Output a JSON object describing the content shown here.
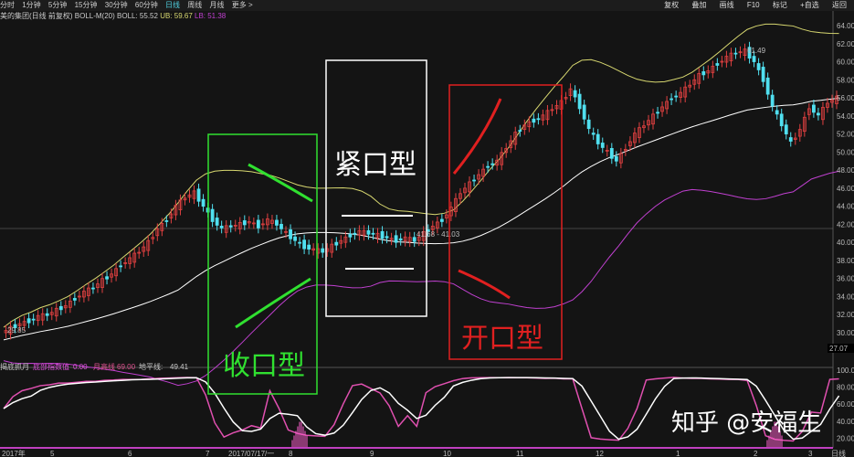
{
  "toolbar": {
    "periods": [
      "分时",
      "1分钟",
      "5分钟",
      "15分钟",
      "30分钟",
      "60分钟",
      "日线",
      "周线",
      "月线",
      "更多 >"
    ],
    "active": "日线",
    "right": [
      "复权",
      "叠加",
      "画线",
      "F10",
      "标记",
      "+自选",
      "返回"
    ]
  },
  "info": {
    "title": "美的集团(日线 前复权) BOLL-M(20)",
    "boll": "BOLL: 55.52",
    "ub": "UB: 59.67",
    "lb": "LB: 51.38"
  },
  "indicator": {
    "name": "揭底抓月",
    "a_label": "底部指数值",
    "a_value": "0.00",
    "b_label": "月高线",
    "b_value": "69.00",
    "c_label": "地平线:",
    "c_value": "49.41"
  },
  "colors": {
    "up": "#e04040",
    "down": "#50e0f0",
    "ub": "#d8d870",
    "mid": "#ffffff",
    "lb": "#c040d0",
    "osc": "#e050b0",
    "bg": "#141414"
  },
  "price_labels": {
    "high": "61.49",
    "mid": "41.68 - 41.03",
    "low": "29.85",
    "last": "27.07"
  },
  "annotations": {
    "green": "收口型",
    "white": "紧口型",
    "red": "开口型"
  },
  "watermark": "知乎 @安福生",
  "chart_data": {
    "type": "candlestick",
    "y_ticks": [
      "64.00",
      "62.00",
      "60.00",
      "58.00",
      "56.00",
      "54.00",
      "52.00",
      "50.00",
      "48.00",
      "46.00",
      "44.00",
      "42.00",
      "40.00",
      "38.00",
      "36.00",
      "34.00",
      "32.00",
      "30.00"
    ],
    "ylim": [
      28,
      64
    ],
    "osc_ticks": [
      "100.00",
      "80.00",
      "60.00",
      "40.00",
      "20.00"
    ],
    "x_labels": [
      "2017年",
      "5",
      "6",
      "7",
      "2017/07/17/一",
      "8",
      "9",
      "10",
      "11",
      "12",
      "1",
      "2",
      "3"
    ],
    "x_axis_unit": "日线",
    "closes": [
      30,
      30.5,
      31,
      31.3,
      31.8,
      32,
      32.5,
      33,
      33.8,
      34.5,
      35,
      35.8,
      36.5,
      37.5,
      38.2,
      39,
      40,
      41.5,
      42.5,
      44,
      45,
      45.5,
      44,
      42.5,
      41.5,
      41.8,
      42,
      42.3,
      41.8,
      42.5,
      42,
      41,
      40.2,
      39.5,
      39.2,
      39,
      39.6,
      40.2,
      40.8,
      41.2,
      41,
      40.8,
      40.5,
      40.2,
      40.5,
      40.2,
      41,
      41.8,
      42.5,
      43.8,
      45.5,
      46.5,
      47.5,
      48.5,
      49,
      50.5,
      52,
      53,
      53.5,
      54,
      54.8,
      55.5,
      57,
      55,
      52.5,
      51,
      50,
      49,
      50.5,
      52,
      53,
      54,
      55,
      56,
      56.5,
      57.5,
      58.5,
      59,
      59.8,
      60.5,
      61,
      61.2,
      60,
      58,
      55,
      53,
      51,
      52.5,
      55,
      54,
      55.5,
      56
    ]
  }
}
